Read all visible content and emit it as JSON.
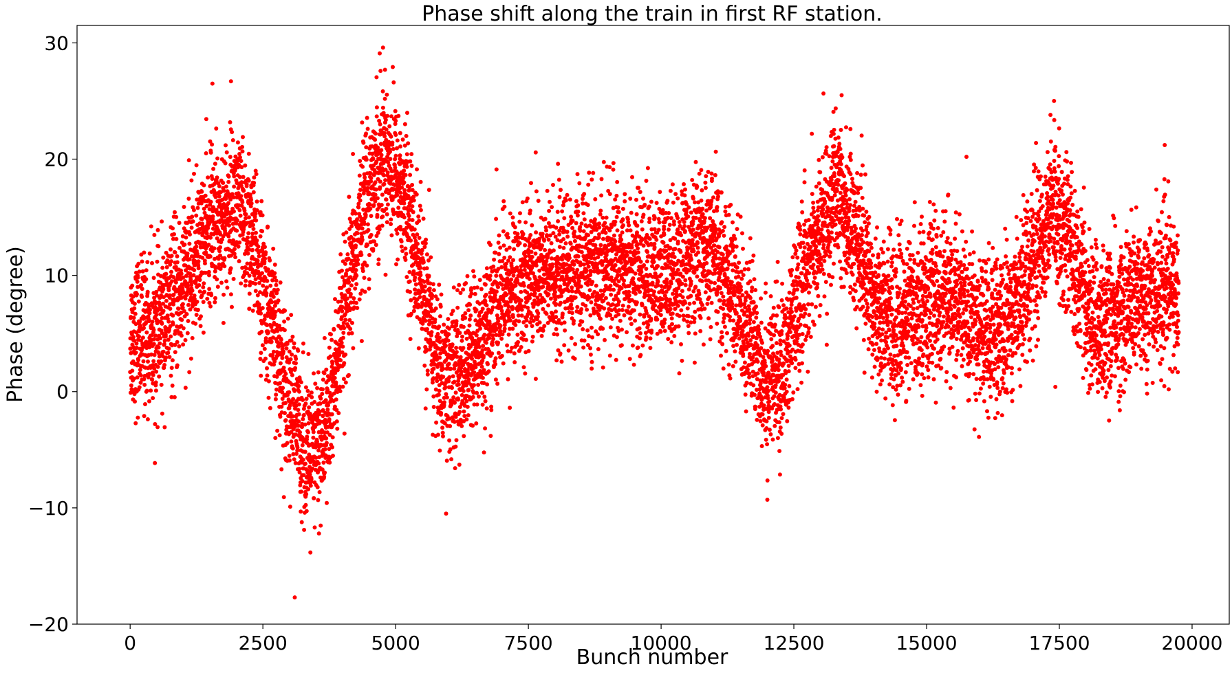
{
  "chart_data": {
    "type": "scatter",
    "title": "Phase shift along the train in first RF station.",
    "xlabel": "Bunch number",
    "ylabel": "Phase (degree)",
    "xlim": [
      -1000,
      20700
    ],
    "ylim": [
      -20,
      31.5
    ],
    "xticks": [
      0,
      2500,
      5000,
      7500,
      10000,
      12500,
      15000,
      17500,
      20000
    ],
    "yticks": [
      -20,
      -10,
      0,
      10,
      20,
      30
    ],
    "xtick_labels": [
      "0",
      "2500",
      "5000",
      "7500",
      "10000",
      "12500",
      "15000",
      "17500",
      "20000"
    ],
    "ytick_labels": [
      "−20",
      "−10",
      "0",
      "10",
      "20",
      "30"
    ],
    "grid": false,
    "marker_color": "#ff0000",
    "series": [
      {
        "n_points": 19750,
        "x_range": [
          0,
          19750
        ],
        "trend": [
          [
            0,
            5
          ],
          [
            500,
            5
          ],
          [
            1000,
            9
          ],
          [
            1500,
            14
          ],
          [
            2000,
            16
          ],
          [
            2300,
            13
          ],
          [
            2700,
            5
          ],
          [
            3100,
            -2
          ],
          [
            3400,
            -6
          ],
          [
            3700,
            -3
          ],
          [
            4000,
            5
          ],
          [
            4400,
            16
          ],
          [
            4800,
            21
          ],
          [
            5200,
            16
          ],
          [
            5500,
            9
          ],
          [
            5800,
            2
          ],
          [
            6100,
            1
          ],
          [
            6600,
            4
          ],
          [
            7000,
            8
          ],
          [
            7500,
            10
          ],
          [
            8000,
            10
          ],
          [
            9000,
            11
          ],
          [
            10000,
            10
          ],
          [
            10700,
            12
          ],
          [
            11000,
            12
          ],
          [
            11500,
            7
          ],
          [
            12000,
            1
          ],
          [
            12300,
            2
          ],
          [
            12700,
            10
          ],
          [
            13300,
            17
          ],
          [
            13700,
            13
          ],
          [
            14100,
            7
          ],
          [
            14500,
            6
          ],
          [
            15000,
            8
          ],
          [
            15500,
            8
          ],
          [
            16000,
            5
          ],
          [
            16400,
            5
          ],
          [
            16800,
            9
          ],
          [
            17400,
            16
          ],
          [
            17700,
            13
          ],
          [
            18100,
            6
          ],
          [
            18500,
            6
          ],
          [
            19000,
            8
          ],
          [
            19500,
            9
          ],
          [
            19750,
            8
          ]
        ],
        "noise_sd": 3.2,
        "outliers": [
          [
            3100,
            -17.7
          ],
          [
            4700,
            29.1
          ],
          [
            5950,
            -10.5
          ],
          [
            12000,
            -9.3
          ],
          [
            1900,
            26.7
          ],
          [
            1550,
            26.5
          ],
          [
            13400,
            25.5
          ],
          [
            17400,
            25
          ]
        ]
      }
    ]
  }
}
